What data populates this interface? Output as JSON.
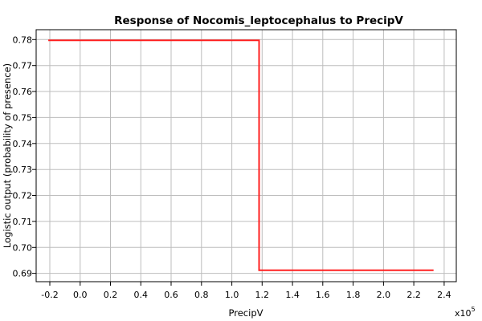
{
  "chart_data": {
    "type": "line",
    "title": "Response of Nocomis_leptocephalus to PrecipV",
    "xlabel": "PrecipV",
    "ylabel": "Logistic output (probability of presence)",
    "x_multiplier_base": "x10",
    "x_multiplier_exponent": "5",
    "xlim": [
      -0.29,
      2.48
    ],
    "ylim": [
      0.6868,
      0.7838
    ],
    "x_ticks": [
      -0.2,
      0.0,
      0.2,
      0.4,
      0.6,
      0.8,
      1.0,
      1.2,
      1.4,
      1.6,
      1.8,
      2.0,
      2.2,
      2.4
    ],
    "x_tick_labels": [
      "-0.2",
      "0.0",
      "0.2",
      "0.4",
      "0.6",
      "0.8",
      "1.0",
      "1.2",
      "1.4",
      "1.6",
      "1.8",
      "2.0",
      "2.2",
      "2.4"
    ],
    "y_ticks": [
      0.69,
      0.7,
      0.71,
      0.72,
      0.73,
      0.74,
      0.75,
      0.76,
      0.77,
      0.78
    ],
    "y_tick_labels": [
      "0.69",
      "0.70",
      "0.71",
      "0.72",
      "0.73",
      "0.74",
      "0.75",
      "0.76",
      "0.77",
      "0.78"
    ],
    "grid": true,
    "series": [
      {
        "color": "#ff2020",
        "x": [
          -0.21,
          1.18,
          1.18,
          2.33
        ],
        "y": [
          0.7797,
          0.7797,
          0.6912,
          0.6912
        ]
      }
    ]
  }
}
